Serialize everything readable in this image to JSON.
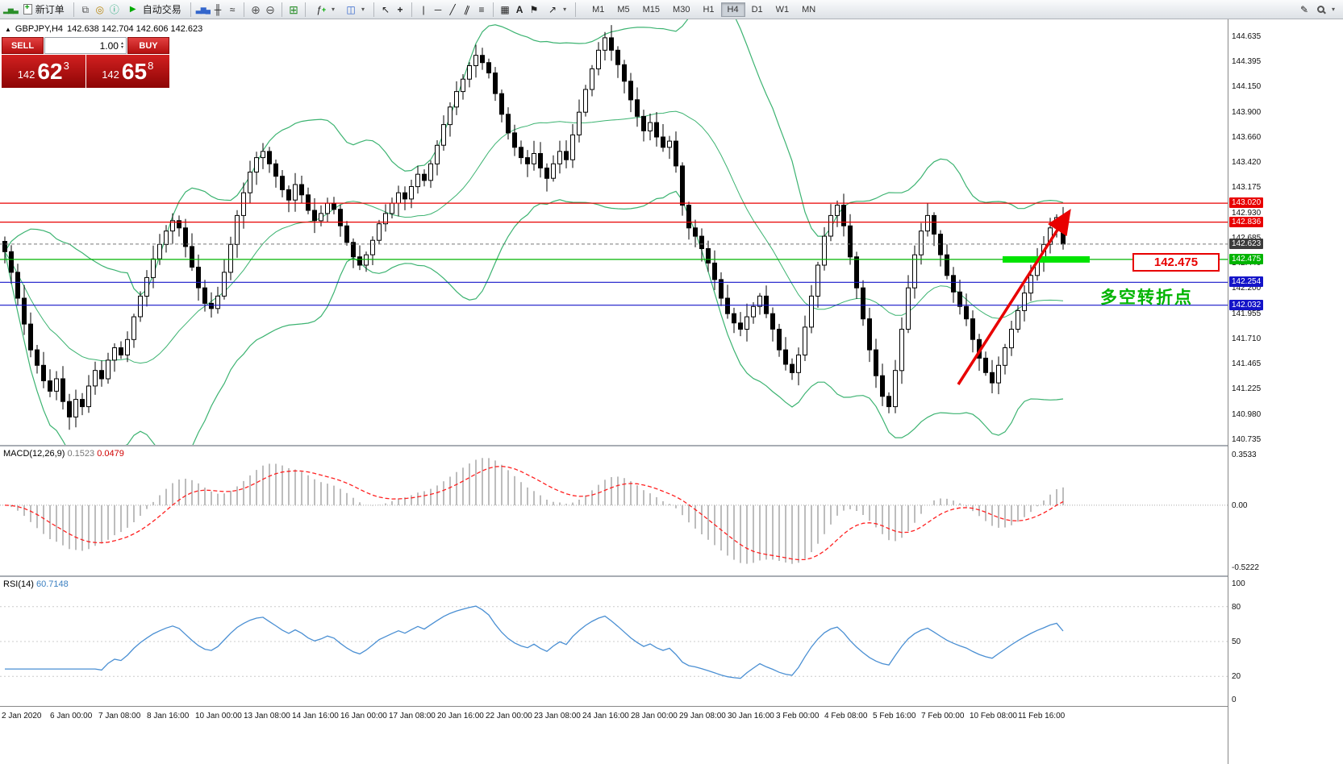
{
  "toolbar": {
    "new_order": "新订单",
    "auto_trading": "自动交易",
    "timeframes": [
      "M1",
      "M5",
      "M15",
      "M30",
      "H1",
      "H4",
      "D1",
      "W1",
      "MN"
    ],
    "active_timeframe": "H4"
  },
  "trade_panel": {
    "sell_label": "SELL",
    "buy_label": "BUY",
    "volume": "1.00",
    "sell_price": {
      "base": "142",
      "big": "62",
      "sup": "3"
    },
    "buy_price": {
      "base": "142",
      "big": "65",
      "sup": "8"
    }
  },
  "symbol_line": {
    "symbol": "GBPJPY,H4",
    "ohlc": "142.638 142.704 142.606 142.623"
  },
  "chart_data": {
    "type": "candlestick",
    "symbol": "GBPJPY",
    "timeframe": "H4",
    "price_axis": {
      "ylim": [
        140.735,
        144.635
      ],
      "ticks": [
        "144.635",
        "144.395",
        "144.150",
        "143.900",
        "143.660",
        "143.420",
        "143.175",
        "142.930",
        "142.685",
        "142.440",
        "142.200",
        "141.955",
        "141.710",
        "141.465",
        "141.225",
        "140.980",
        "140.735"
      ]
    },
    "time_axis": [
      "2 Jan 2020",
      "6 Jan 00:00",
      "7 Jan 08:00",
      "8 Jan 16:00",
      "10 Jan 00:00",
      "13 Jan 08:00",
      "14 Jan 16:00",
      "16 Jan 00:00",
      "17 Jan 08:00",
      "20 Jan 16:00",
      "22 Jan 00:00",
      "23 Jan 08:00",
      "24 Jan 16:00",
      "28 Jan 00:00",
      "29 Jan 08:00",
      "30 Jan 16:00",
      "3 Feb 00:00",
      "4 Feb 08:00",
      "5 Feb 16:00",
      "7 Feb 00:00",
      "10 Feb 08:00",
      "11 Feb 16:00"
    ],
    "candles": {
      "closes": [
        142.55,
        142.35,
        142.1,
        141.85,
        141.6,
        141.45,
        141.3,
        141.2,
        141.32,
        141.1,
        140.95,
        141.12,
        141.05,
        141.25,
        141.4,
        141.32,
        141.5,
        141.62,
        141.55,
        141.7,
        141.92,
        142.12,
        142.3,
        142.48,
        142.62,
        142.75,
        142.85,
        142.78,
        142.6,
        142.4,
        142.2,
        142.05,
        142.0,
        142.12,
        142.35,
        142.62,
        142.9,
        143.12,
        143.32,
        143.46,
        143.52,
        143.4,
        143.28,
        143.15,
        143.05,
        143.2,
        143.1,
        142.95,
        142.85,
        142.92,
        143.02,
        142.96,
        142.8,
        142.64,
        142.5,
        142.42,
        142.52,
        142.66,
        142.82,
        142.92,
        143.02,
        143.12,
        143.06,
        143.18,
        143.3,
        143.24,
        143.4,
        143.58,
        143.78,
        143.95,
        144.1,
        144.22,
        144.35,
        144.45,
        144.38,
        144.28,
        144.08,
        143.88,
        143.7,
        143.56,
        143.46,
        143.4,
        143.5,
        143.36,
        143.26,
        143.4,
        143.52,
        143.44,
        143.68,
        143.9,
        144.12,
        144.32,
        144.5,
        144.62,
        144.5,
        144.36,
        144.2,
        144.02,
        143.86,
        143.72,
        143.8,
        143.66,
        143.56,
        143.62,
        143.38,
        143.0,
        142.78,
        142.7,
        142.58,
        142.44,
        142.28,
        142.1,
        141.95,
        141.86,
        141.8,
        141.92,
        142.02,
        142.12,
        141.95,
        141.8,
        141.6,
        141.46,
        141.38,
        141.55,
        141.82,
        142.12,
        142.42,
        142.7,
        142.9,
        143.0,
        142.8,
        142.5,
        142.2,
        141.9,
        141.6,
        141.35,
        141.15,
        141.05,
        141.4,
        141.8,
        142.2,
        142.52,
        142.75,
        142.9,
        142.72,
        142.52,
        142.32,
        142.16,
        142.02,
        141.9,
        141.7,
        141.52,
        141.38,
        141.28,
        141.45,
        141.62,
        141.8,
        141.98,
        142.15,
        142.32,
        142.48,
        142.62,
        142.78,
        142.88,
        142.623
      ]
    },
    "overlays": {
      "bollinger": {
        "period": 20,
        "deviation": 2
      }
    },
    "hlines": [
      {
        "price": 143.02,
        "label": "143.020",
        "color": "#e80000"
      },
      {
        "price": 142.836,
        "label": "142.836",
        "color": "#e80000"
      },
      {
        "price": 142.475,
        "label": "142.475",
        "color": "#00b400"
      },
      {
        "price": 142.254,
        "label": "142.254",
        "color": "#1414c8"
      },
      {
        "price": 142.032,
        "label": "142.032",
        "color": "#1414c8"
      }
    ],
    "current_price": {
      "value": 142.623,
      "label": "142.623"
    },
    "annotations": {
      "price_callout": "142.475",
      "turning_point": "多空转折点",
      "support_bar_price": 142.475
    },
    "macd": {
      "name": "MACD(12,26,9)",
      "value_main": "0.1523",
      "value_signal": "0.0479",
      "params": {
        "fast": 12,
        "slow": 26,
        "signal": 9
      },
      "scale": {
        "top": "0.3533",
        "zero": "0.00",
        "bottom": "-0.5222"
      }
    },
    "rsi": {
      "name": "RSI(14)",
      "value": "60.7148",
      "period": 14,
      "levels": [
        100,
        80,
        50,
        20,
        0
      ]
    }
  },
  "colors": {
    "up_candle": "#ffffff",
    "down_candle": "#000000",
    "candle_border": "#000000",
    "bollinger": "#3cb371",
    "macd_hist": "#bdbdbd",
    "macd_signal": "#ff2020",
    "rsi_line": "#4a8fd3",
    "support_bar": "#00e400",
    "arrow": "#e80000",
    "current_price_label_bg": "#3c3c3c"
  }
}
